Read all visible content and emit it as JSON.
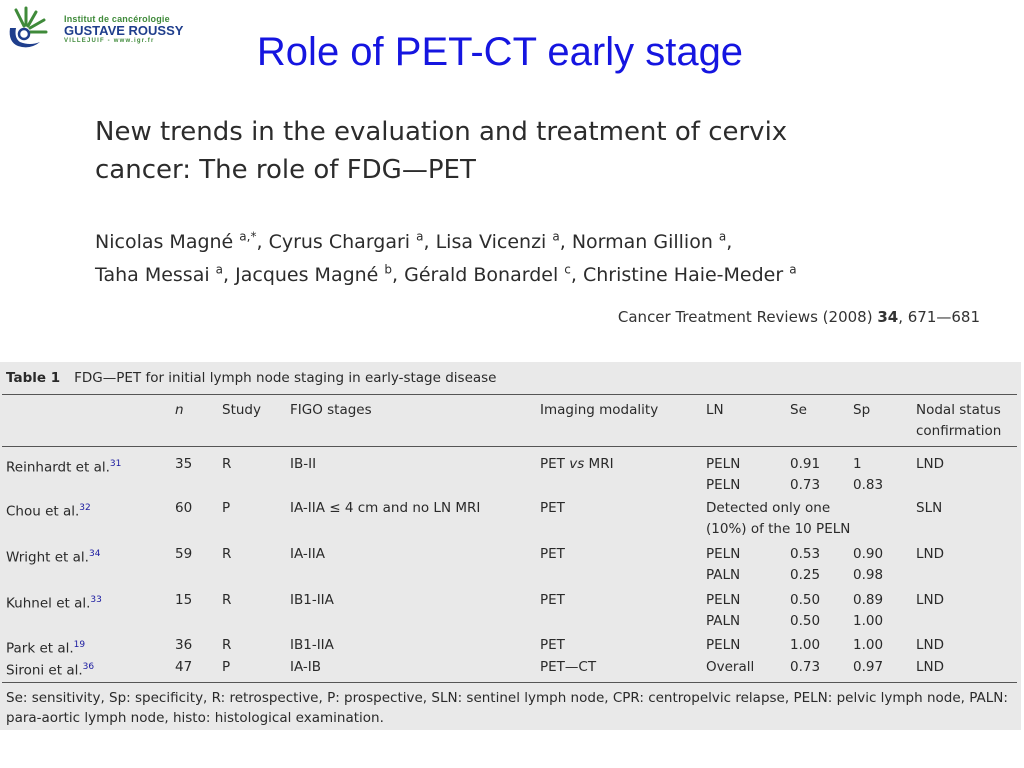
{
  "logo": {
    "line1": "Institut de cancérologie",
    "line2": "GUSTAVE ROUSSY",
    "line3": "VILLEJUIF - www.igr.fr",
    "colors": {
      "blue": "#1f3e8c",
      "green": "#3f8a3a"
    }
  },
  "slide": {
    "title": "Role of PET-CT early stage",
    "title_color": "#1515e0"
  },
  "paper": {
    "title_line1": "New trends in the evaluation and treatment of cervix",
    "title_line2": "cancer: The role of FDG—PET",
    "authors": [
      {
        "name": "Nicolas Magné ",
        "aff": "a,*",
        "sep": ", "
      },
      {
        "name": "Cyrus Chargari ",
        "aff": "a",
        "sep": ", "
      },
      {
        "name": "Lisa Vicenzi ",
        "aff": "a",
        "sep": ", "
      },
      {
        "name": "Norman Gillion ",
        "aff": "a",
        "sep": ","
      },
      {
        "name": "Taha Messai ",
        "aff": "a",
        "sep": ", "
      },
      {
        "name": "Jacques Magné ",
        "aff": "b",
        "sep": ", "
      },
      {
        "name": "Gérald Bonardel ",
        "aff": "c",
        "sep": ", "
      },
      {
        "name": "Christine Haie-Meder ",
        "aff": "a",
        "sep": ""
      }
    ],
    "citation_journal": "Cancer Treatment Reviews (2008) ",
    "citation_volume": "34",
    "citation_pages": ", 671—681"
  },
  "table": {
    "label": "Table 1",
    "caption": "FDG—PET for initial lymph node staging in early-stage disease",
    "headers": [
      "",
      "n",
      "Study",
      "FIGO stages",
      "Imaging modality",
      "LN",
      "Se",
      "Sp",
      "Nodal status confirmation"
    ],
    "rows": [
      {
        "author": "Reinhardt et al.",
        "ref": "31",
        "n": "35",
        "study": "R",
        "figo": "IB-II",
        "modality": "PET vs MRI",
        "ln": [
          "PELN",
          "PELN"
        ],
        "se": [
          "0.91",
          "0.73"
        ],
        "sp": [
          "1",
          "0.83"
        ],
        "confirm": "LND"
      },
      {
        "author": "Chou et al.",
        "ref": "32",
        "n": "60",
        "study": "P",
        "figo": "IA-IIA ≤ 4 cm and no LN MRI",
        "modality": "PET",
        "ln_text": [
          "Detected only one",
          "(10%) of the 10 PELN"
        ],
        "confirm": "SLN"
      },
      {
        "author": "Wright et al.",
        "ref": "34",
        "n": "59",
        "study": "R",
        "figo": "IA-IIA",
        "modality": "PET",
        "ln": [
          "PELN",
          "PALN"
        ],
        "se": [
          "0.53",
          "0.25"
        ],
        "sp": [
          "0.90",
          "0.98"
        ],
        "confirm": "LND"
      },
      {
        "author": "Kuhnel et al.",
        "ref": "33",
        "n": "15",
        "study": "R",
        "figo": "IB1-IIA",
        "modality": "PET",
        "ln": [
          "PELN",
          "PALN"
        ],
        "se": [
          "0.50",
          "0.50"
        ],
        "sp": [
          "0.89",
          "1.00"
        ],
        "confirm": "LND"
      },
      {
        "author": "Park et al.",
        "ref": "19",
        "n": "36",
        "study": "R",
        "figo": "IB1-IIA",
        "modality": "PET",
        "ln": [
          "PELN"
        ],
        "se": [
          "1.00"
        ],
        "sp": [
          "1.00"
        ],
        "confirm": "LND"
      },
      {
        "author": "Sironi et al.",
        "ref": "36",
        "n": "47",
        "study": "P",
        "figo": "IA-IB",
        "modality": "PET—CT",
        "ln": [
          "Overall"
        ],
        "se": [
          "0.73"
        ],
        "sp": [
          "0.97"
        ],
        "confirm": "LND"
      }
    ],
    "footnote": "Se: sensitivity, Sp: specificity, R: retrospective, P: prospective, SLN: sentinel lymph node, CPR: centropelvic relapse, PELN: pelvic lymph node, PALN: para-aortic lymph node, histo: histological examination."
  }
}
